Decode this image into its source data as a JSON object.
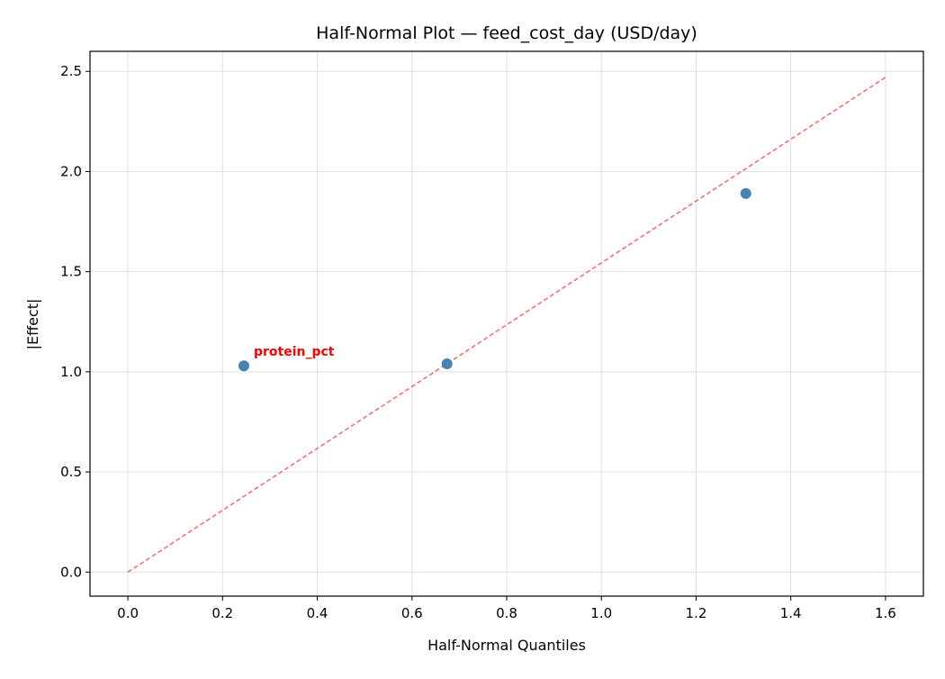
{
  "chart_data": {
    "type": "scatter",
    "title": "Half-Normal Plot — feed_cost_day (USD/day)",
    "xlabel": "Half-Normal Quantiles",
    "ylabel": "|Effect|",
    "xlim": [
      -0.08,
      1.68
    ],
    "ylim": [
      -0.12,
      2.6
    ],
    "xticks": [
      0.0,
      0.2,
      0.4,
      0.6,
      0.8,
      1.0,
      1.2,
      1.4,
      1.6
    ],
    "xtick_labels": [
      "0.0",
      "0.2",
      "0.4",
      "0.6",
      "0.8",
      "1.0",
      "1.2",
      "1.4",
      "1.6"
    ],
    "yticks": [
      0.0,
      0.5,
      1.0,
      1.5,
      2.0,
      2.5
    ],
    "ytick_labels": [
      "0.0",
      "0.5",
      "1.0",
      "1.5",
      "2.0",
      "2.5"
    ],
    "grid": true,
    "points": [
      {
        "x": 0.245,
        "y": 1.03,
        "label": "protein_pct"
      },
      {
        "x": 0.674,
        "y": 1.04,
        "label": ""
      },
      {
        "x": 1.305,
        "y": 1.89,
        "label": ""
      }
    ],
    "reference_line": {
      "x": [
        0.0,
        1.6
      ],
      "y": [
        0.0,
        2.47
      ],
      "style": "dashed"
    },
    "colors": {
      "points": "#4682b4",
      "reference_line": "#ff6666",
      "annotation": "#ff0000",
      "grid": "#e0e0e0"
    }
  }
}
